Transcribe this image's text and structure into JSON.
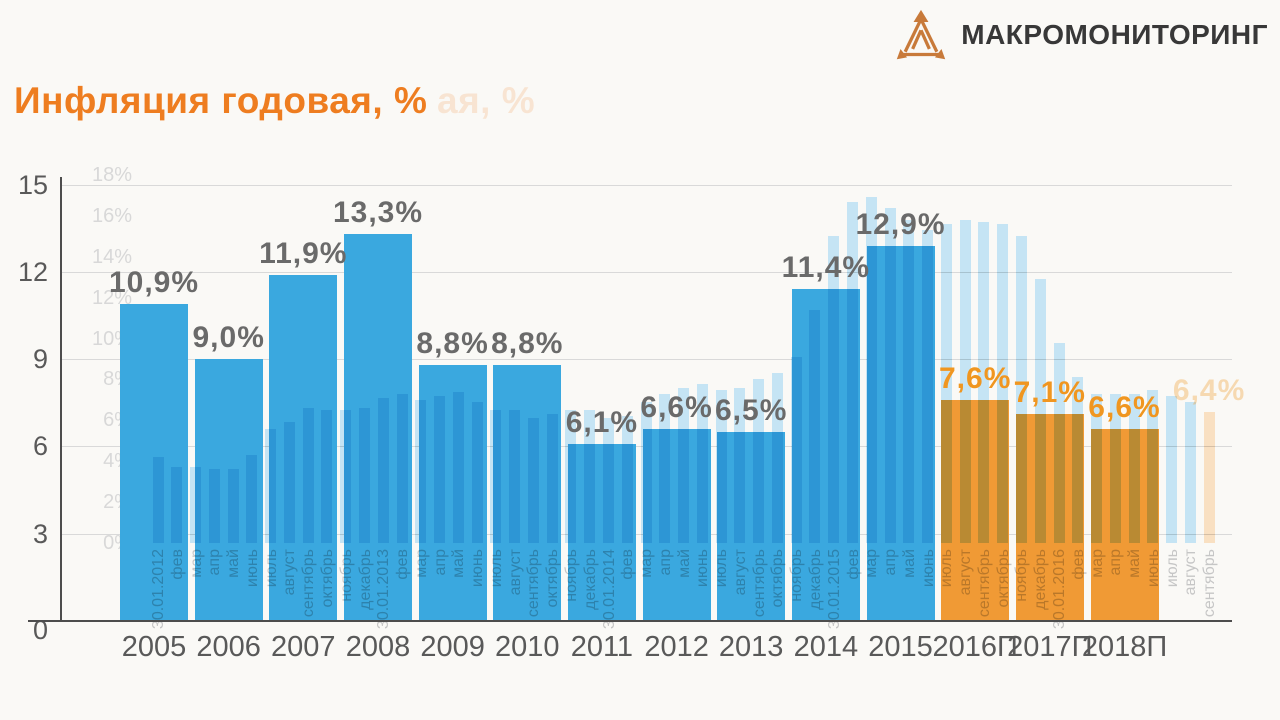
{
  "logo": {
    "text": "МАКРОМОНИТОРИНГ",
    "icon": "triangle-arrows-icon"
  },
  "title": {
    "text": "Инфляция годовая, %",
    "ghost_fragment": "ая, %"
  },
  "colors": {
    "background": "#FAF9F6",
    "bar_blue": "#3AA8DF",
    "bar_orange": "#F09A35",
    "ghost_blue": "#C5E4F4",
    "ghost_orange_bar": "#F9E0C2",
    "ghost_text": "#C6C6C6",
    "ghost_axis_text": "#D8D8D8",
    "title_orange": "#EE7D20",
    "label_gray": "#6A6A6A",
    "forecast_label_orange": "#F09620",
    "axis_gray": "#595959",
    "axis_line": "#4D4D4D",
    "grid": "#D9D9D9",
    "logo_text": "#383838",
    "logo_orange": "#C87A3A"
  },
  "chart_data": {
    "type": "bar",
    "title": "Инфляция годовая, %",
    "ylabel": "",
    "xlabel": "",
    "y_axis": {
      "ticks": [
        0,
        3,
        6,
        9,
        12,
        15
      ],
      "max": 15,
      "grid": true
    },
    "categories": [
      "2005",
      "2006",
      "2007",
      "2008",
      "2009",
      "2010",
      "2011",
      "2012",
      "2013",
      "2014",
      "2015",
      "2016П",
      "2017П",
      "2018П"
    ],
    "values": [
      10.9,
      9.0,
      11.9,
      13.3,
      8.8,
      8.8,
      6.1,
      6.6,
      6.5,
      11.4,
      12.9,
      7.6,
      7.1,
      6.6
    ],
    "labels": [
      "10,9%",
      "9,0%",
      "11,9%",
      "13,3%",
      "8,8%",
      "8,8%",
      "6,1%",
      "6,6%",
      "6,5%",
      "11,4%",
      "12,9%",
      "7,6%",
      "7,1%",
      "6,6%"
    ],
    "forecast_from_index": 11,
    "ghost_overlay": {
      "description": "faded previous-slide monthly annual-inflation chart, values estimated from gridlines",
      "y_axis_ticks": [
        "0%",
        "2%",
        "4%",
        "6%",
        "8%",
        "10%",
        "12%",
        "14%",
        "16%",
        "18%"
      ],
      "months": [
        "30.01.2012",
        "фев",
        "мар",
        "апр",
        "май",
        "июнь",
        "июль",
        "август",
        "сентябрь",
        "октябрь",
        "ноябрь",
        "декабрь",
        "30.01.2013",
        "фев",
        "мар",
        "апр",
        "май",
        "июнь",
        "июль",
        "август",
        "сентябрь",
        "октябрь",
        "ноябрь",
        "декабрь",
        "30.01.2014",
        "фев",
        "мар",
        "апр",
        "май",
        "июнь",
        "июль",
        "август",
        "сентябрь",
        "октябрь",
        "ноябрь",
        "декабрь",
        "30.01.2015",
        "фев",
        "мар",
        "апр",
        "май",
        "июнь",
        "июль",
        "август",
        "сентябрь",
        "октябрь",
        "ноябрь",
        "декабрь",
        "30.01.2016",
        "фев",
        "мар",
        "апр",
        "май",
        "июнь",
        "июль",
        "август",
        "сентябрь"
      ],
      "values": [
        4.2,
        3.7,
        3.7,
        3.6,
        3.6,
        4.3,
        5.6,
        5.9,
        6.6,
        6.5,
        6.5,
        6.6,
        7.1,
        7.3,
        7.0,
        7.2,
        7.4,
        6.9,
        6.5,
        6.5,
        6.1,
        6.3,
        6.5,
        6.5,
        6.1,
        6.2,
        6.9,
        7.3,
        7.6,
        7.8,
        7.5,
        7.6,
        8.0,
        8.3,
        9.1,
        11.4,
        15.0,
        16.7,
        16.9,
        16.4,
        15.8,
        15.3,
        15.6,
        15.8,
        15.7,
        15.6,
        15.0,
        12.9,
        9.8,
        8.1,
        7.3,
        7.3,
        7.3,
        7.5,
        7.2,
        6.9,
        6.4
      ],
      "forecast_last_n": 1,
      "last_label": "6,4%"
    }
  }
}
